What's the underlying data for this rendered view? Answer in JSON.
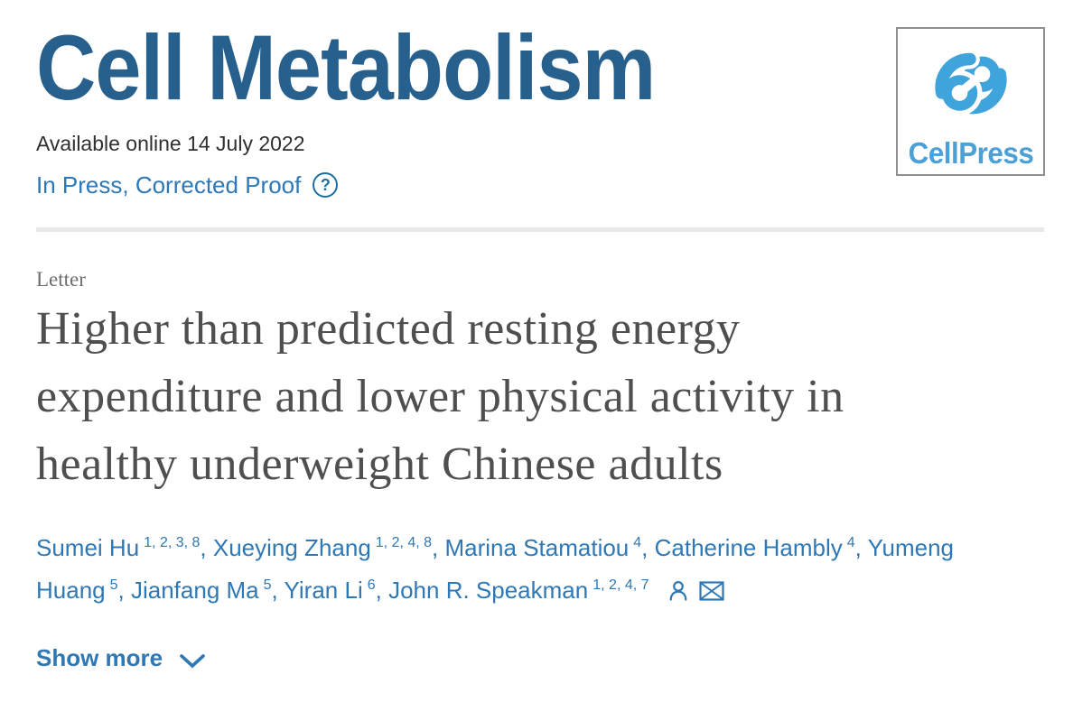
{
  "journal": {
    "name": "Cell Metabolism",
    "available_online": "Available online 14 July 2022",
    "status": "In Press, Corrected Proof",
    "status_help_glyph": "?"
  },
  "publisher": {
    "logo_text": "CellPress",
    "logo_icon": "cellpress-swirl-icon"
  },
  "article": {
    "type_label": "Letter",
    "title_full": "Higher than predicted resting energy expenditure and lower physical activity in healthy underweight Chinese adults",
    "title_lines": [
      "Higher than predicted resting energy",
      "expenditure and lower physical activity in",
      "healthy underweight Chinese adults"
    ],
    "author_lines": [
      [
        {
          "name": "Sumei Hu",
          "sup": "1, 2, 3, 8",
          "sep": ", "
        },
        {
          "name": "Xueying Zhang",
          "sup": "1, 2, 4, 8",
          "sep": ", "
        },
        {
          "name": "Marina Stamatiou",
          "sup": "4",
          "sep": ", "
        },
        {
          "name": "Catherine Hambly",
          "sup": "4",
          "sep": ", "
        },
        {
          "name": "Yumeng",
          "sup": "",
          "sep": ""
        }
      ],
      [
        {
          "name": "Huang",
          "sup": "5",
          "sep": ", "
        },
        {
          "name": "Jianfang Ma",
          "sup": "5",
          "sep": ", "
        },
        {
          "name": "Yiran Li",
          "sup": "6",
          "sep": ", "
        },
        {
          "name": "John R. Speakman",
          "sup": "1, 2, 4, 7",
          "sep": ""
        }
      ]
    ],
    "author_icons": [
      "person-icon",
      "envelope-icon"
    ],
    "show_more_label": "Show more"
  },
  "colors": {
    "accent_blue": "#2E78B5",
    "masthead_blue": "#27608C",
    "title_gray": "#4F4F4F",
    "label_gray": "#6E6E6E",
    "meta_text": "#2F2F2F",
    "divider_gray": "#E9E9E9",
    "logo_blue": "#3FA3DC",
    "logo_text_blue": "#4BA0D6",
    "logo_border_gray": "#8F8F8F",
    "help_blue": "#1E6F9F"
  }
}
